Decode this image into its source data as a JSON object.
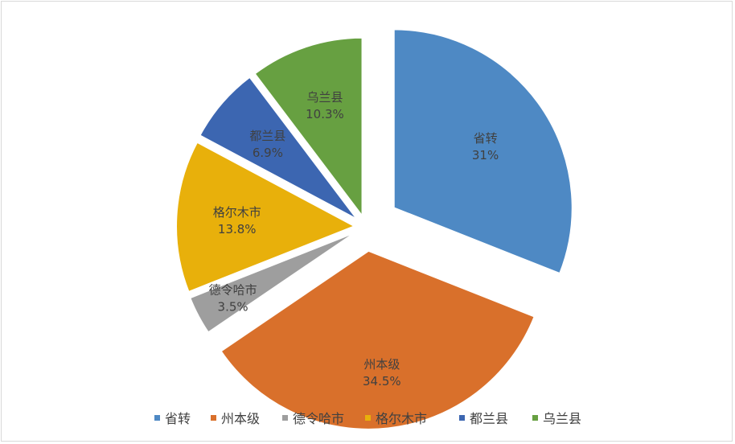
{
  "chart_data": {
    "type": "pie",
    "title": "",
    "exploded": true,
    "legend_position": "bottom",
    "slices": [
      {
        "label": "省转",
        "value": 31,
        "value_label": "31%",
        "color": "#4e89c4"
      },
      {
        "label": "州本级",
        "value": 34.5,
        "value_label": "34.5%",
        "color": "#d9702b"
      },
      {
        "label": "德令哈市",
        "value": 3.5,
        "value_label": "3.5%",
        "color": "#9e9e9e"
      },
      {
        "label": "格尔木市",
        "value": 13.8,
        "value_label": "13.8%",
        "color": "#e8b00b"
      },
      {
        "label": "都兰县",
        "value": 6.9,
        "value_label": "6.9%",
        "color": "#3c66b1"
      },
      {
        "label": "乌兰县",
        "value": 10.3,
        "value_label": "10.3%",
        "color": "#67a041"
      }
    ]
  }
}
